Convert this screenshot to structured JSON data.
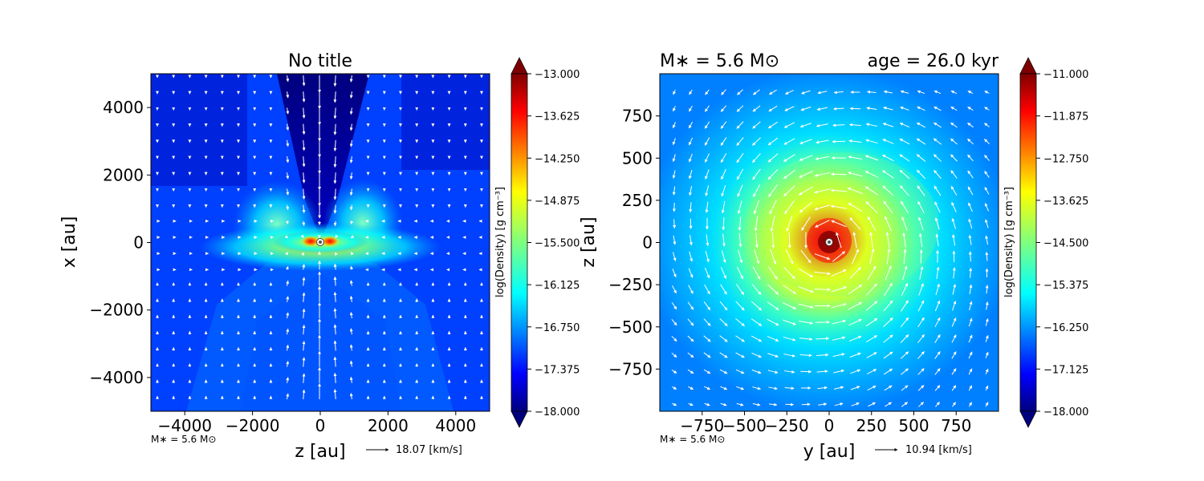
{
  "chart_data": [
    {
      "type": "heatmap",
      "title": "No title",
      "xlabel": "z [au]",
      "ylabel": "x [au]",
      "xlim": [
        -5000,
        5000
      ],
      "ylim": [
        -5000,
        5000
      ],
      "x_ticks": [
        -4000,
        -2000,
        0,
        2000,
        4000
      ],
      "y_ticks": [
        -4000,
        -2000,
        0,
        2000,
        4000
      ],
      "x_tick_labels": [
        "−4000",
        "−2000",
        "0",
        "2000",
        "4000"
      ],
      "y_tick_labels": [
        "−4000",
        "−2000",
        "0",
        "2000",
        "4000"
      ],
      "colorbar": {
        "label": "log(Density) [g cm⁻³]",
        "range": [
          -18.0,
          -13.0
        ],
        "ticks": [
          "−13.000",
          "−13.625",
          "−14.250",
          "−14.875",
          "−15.500",
          "−16.125",
          "−16.750",
          "−17.375",
          "−18.000"
        ]
      },
      "annotation": "M∗ = 5.6 M⊙",
      "quiver_key": "18.07 [km/s]",
      "sink_position": [
        0,
        0
      ]
    },
    {
      "type": "heatmap",
      "title_left": "M∗ = 5.6 M⊙",
      "title_right": "age = 26.0 kyr",
      "xlabel": "y [au]",
      "ylabel": "z [au]",
      "xlim": [
        -1000,
        1000
      ],
      "ylim": [
        -1000,
        1000
      ],
      "x_ticks": [
        -750,
        -500,
        -250,
        0,
        250,
        500,
        750
      ],
      "y_ticks": [
        -750,
        -500,
        -250,
        0,
        250,
        500,
        750
      ],
      "x_tick_labels": [
        "−750",
        "−500",
        "−250",
        "0",
        "250",
        "500",
        "750"
      ],
      "y_tick_labels": [
        "−750",
        "−500",
        "−250",
        "0",
        "250",
        "500",
        "750"
      ],
      "colorbar": {
        "label": "log(Density) [g cm⁻³]",
        "range": [
          -18.0,
          -11.0
        ],
        "ticks": [
          "−11.000",
          "−11.875",
          "−12.750",
          "−13.625",
          "−14.500",
          "−15.375",
          "−16.250",
          "−17.125",
          "−18.000"
        ]
      },
      "annotation": "M∗ = 5.6 M⊙",
      "quiver_key": "10.94 [km/s]",
      "sink_position": [
        0,
        0
      ]
    }
  ],
  "colors": {
    "colormap": [
      "#00007f",
      "#0000ff",
      "#007fff",
      "#00ffff",
      "#7fff7f",
      "#ffff00",
      "#ff7f00",
      "#ff0000",
      "#7f0000"
    ],
    "vectors": "#ffffff",
    "sink": "#ffffff"
  }
}
